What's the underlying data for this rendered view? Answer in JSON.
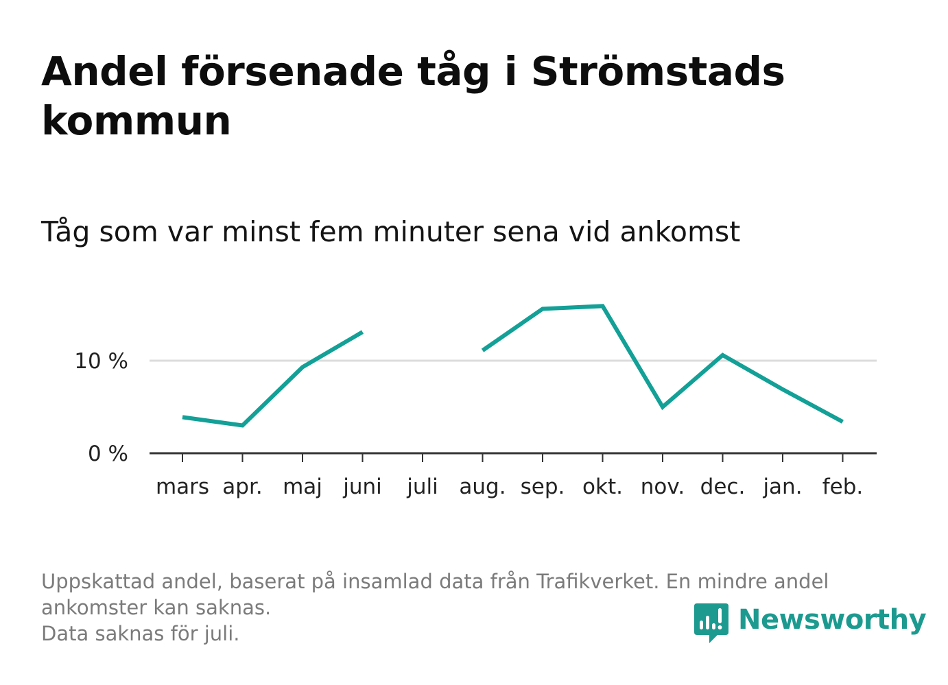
{
  "title": "Andel försenade tåg i Strömstads kommun",
  "subtitle": "Tåg som var minst fem minuter sena vid ankomst",
  "footnote": {
    "line1": "Uppskattad andel, baserat på insamlad data från Trafikverket. En mindre andel",
    "line2": "ankomster kan saknas.",
    "line3": "Data saknas för juli."
  },
  "brand": {
    "name": "Newsworthy",
    "icon": "newsworthy-logo-icon",
    "color": "#1c9a90"
  },
  "chart_data": {
    "type": "line",
    "title": "Andel försenade tåg i Strömstads kommun",
    "subtitle": "Tåg som var minst fem minuter sena vid ankomst",
    "xlabel": "",
    "ylabel": "",
    "categories": [
      "mars",
      "apr.",
      "maj",
      "juni",
      "juli",
      "aug.",
      "sep.",
      "okt.",
      "nov.",
      "dec.",
      "jan.",
      "feb."
    ],
    "series": [
      {
        "name": "Andel försenade tåg",
        "values": [
          3.9,
          3.0,
          9.3,
          13.1,
          null,
          11.1,
          15.6,
          15.9,
          5.0,
          10.6,
          6.9,
          3.4
        ],
        "color": "#12a097"
      }
    ],
    "yticks": [
      0,
      10
    ],
    "ytick_labels": [
      "0 %",
      "10 %"
    ],
    "ylim": [
      0,
      18
    ],
    "grid": true,
    "legend": "none",
    "colors": {
      "gridline": "#dcdcdc",
      "axis": "#333333"
    }
  }
}
